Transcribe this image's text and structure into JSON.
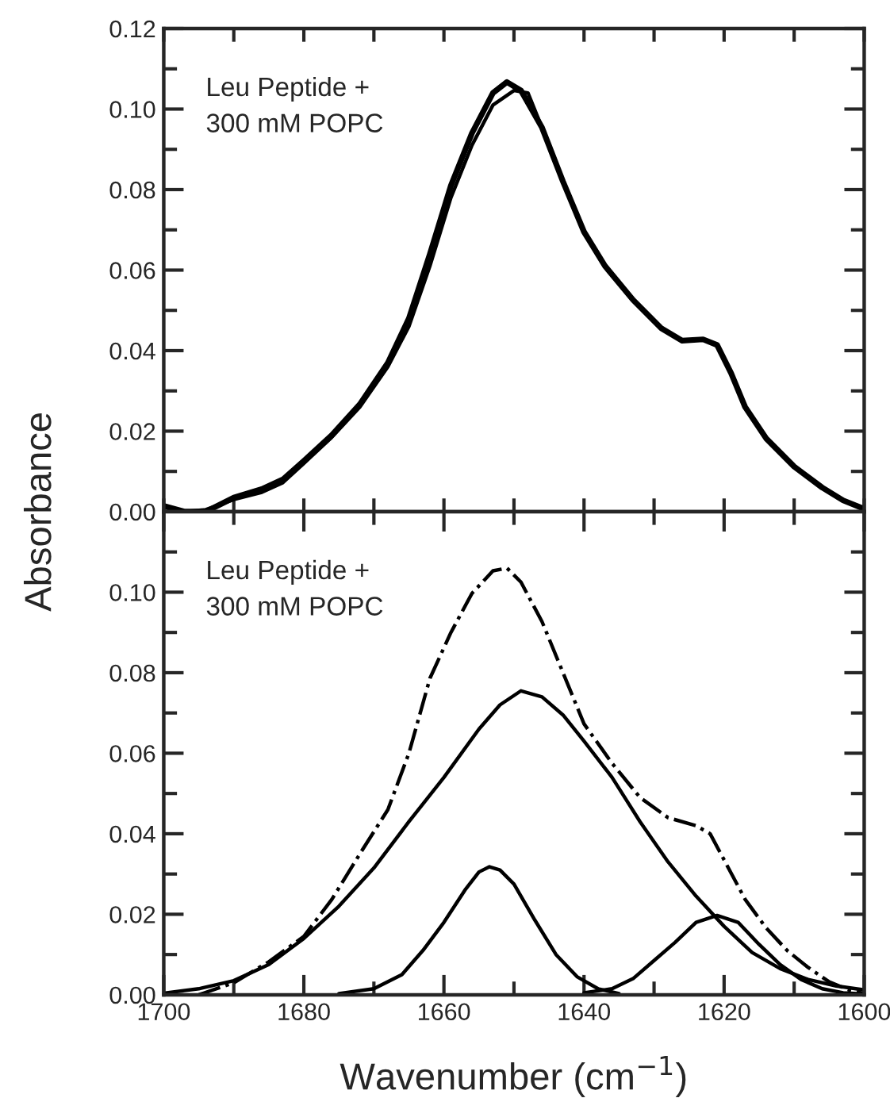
{
  "chart_data": [
    {
      "type": "line",
      "ylabel": "Absorbance",
      "annotations": [
        "Leu Peptide +\n300 mM POPC"
      ],
      "xlim": [
        1700,
        1600
      ],
      "ylim": [
        0,
        0.12
      ],
      "xticks": [
        {
          "value": 1700,
          "label": null
        },
        {
          "value": 1690,
          "label": null
        },
        {
          "value": 1680,
          "label": null
        },
        {
          "value": 1670,
          "label": null
        },
        {
          "value": 1660,
          "label": null
        },
        {
          "value": 1650,
          "label": null
        },
        {
          "value": 1640,
          "label": null
        },
        {
          "value": 1630,
          "label": null
        },
        {
          "value": 1620,
          "label": null
        },
        {
          "value": 1610,
          "label": null
        },
        {
          "value": 1600,
          "label": null
        }
      ],
      "yticks": [
        {
          "value": 0,
          "label": "0.00"
        },
        {
          "value": 0.01,
          "label": null
        },
        {
          "value": 0.02,
          "label": "0.02"
        },
        {
          "value": 0.03,
          "label": null
        },
        {
          "value": 0.04,
          "label": "0.04"
        },
        {
          "value": 0.05,
          "label": null
        },
        {
          "value": 0.06,
          "label": "0.06"
        },
        {
          "value": 0.07,
          "label": null
        },
        {
          "value": 0.08,
          "label": "0.08"
        },
        {
          "value": 0.09,
          "label": null
        },
        {
          "value": 0.1,
          "label": "0.10"
        },
        {
          "value": 0.11,
          "label": null
        },
        {
          "value": 0.12,
          "label": "0.12"
        }
      ],
      "tick_labels": "y",
      "grid": false,
      "legend": false,
      "marker": "none",
      "series": [
        {
          "color": "#000000",
          "line_style": "solid",
          "x": [
            1700,
            1697,
            1694,
            1690,
            1686,
            1683,
            1680,
            1676,
            1672,
            1668,
            1665,
            1662,
            1659,
            1656,
            1653,
            1651,
            1649,
            1646,
            1643,
            1640,
            1637,
            1633,
            1629,
            1626,
            1623,
            1621,
            1619,
            1617,
            1614,
            1610,
            1606,
            1603,
            1600
          ],
          "values": [
            0.0014,
            0.0,
            0.0,
            0.0035,
            0.0056,
            0.008,
            0.0126,
            0.019,
            0.0267,
            0.037,
            0.048,
            0.064,
            0.081,
            0.094,
            0.104,
            0.1067,
            0.1046,
            0.0954,
            0.082,
            0.0695,
            0.061,
            0.0526,
            0.0456,
            0.0425,
            0.0428,
            0.0414,
            0.0344,
            0.026,
            0.0182,
            0.0112,
            0.006,
            0.0028,
            0.0007
          ]
        },
        {
          "color": "#000000",
          "line_style": "solid",
          "x": [
            1700,
            1697,
            1694,
            1690,
            1686,
            1683,
            1680,
            1676,
            1672,
            1668,
            1665,
            1662,
            1659,
            1656,
            1653,
            1650,
            1648,
            1646,
            1643,
            1640,
            1637,
            1633,
            1629,
            1626,
            1623,
            1621,
            1619,
            1617,
            1614,
            1610,
            1606,
            1603,
            1600
          ],
          "values": [
            0.0,
            0.0,
            0.0005,
            0.003,
            0.0048,
            0.0072,
            0.012,
            0.0185,
            0.026,
            0.036,
            0.046,
            0.061,
            0.078,
            0.091,
            0.101,
            0.1046,
            0.104,
            0.0954,
            0.082,
            0.0695,
            0.061,
            0.0526,
            0.0456,
            0.0425,
            0.0428,
            0.0414,
            0.0344,
            0.026,
            0.0182,
            0.0112,
            0.006,
            0.0028,
            0.0007
          ]
        }
      ]
    },
    {
      "type": "line",
      "xlabel": "Wavenumber (cm$^{−1}$)",
      "annotations": [
        "Leu Peptide +\n300 mM POPC"
      ],
      "xlim": [
        1700,
        1600
      ],
      "ylim": [
        0,
        0.12
      ],
      "xticks": [
        1700,
        {
          "value": 1690,
          "label": null
        },
        1680,
        {
          "value": 1670,
          "label": null
        },
        1660,
        {
          "value": 1650,
          "label": null
        },
        1640,
        {
          "value": 1630,
          "label": null
        },
        1620,
        {
          "value": 1610,
          "label": null
        },
        1600
      ],
      "yticks": [
        {
          "value": 0,
          "label": "0.00"
        },
        {
          "value": 0.01,
          "label": null
        },
        {
          "value": 0.02,
          "label": "0.02"
        },
        {
          "value": 0.03,
          "label": null
        },
        {
          "value": 0.04,
          "label": "0.04"
        },
        {
          "value": 0.05,
          "label": null
        },
        {
          "value": 0.06,
          "label": "0.06"
        },
        {
          "value": 0.07,
          "label": null
        },
        {
          "value": 0.08,
          "label": "0.08"
        },
        {
          "value": 0.09,
          "label": null
        },
        {
          "value": 0.1,
          "label": "0.10"
        },
        {
          "value": 0.11,
          "label": null
        }
      ],
      "grid": false,
      "legend": false,
      "marker": "none",
      "series": [
        {
          "color": "#000000",
          "line_style": "dashdot",
          "x": [
            1695,
            1690,
            1685,
            1680,
            1676,
            1672,
            1668,
            1665,
            1662,
            1659,
            1656,
            1653,
            1651,
            1649,
            1646,
            1643,
            1640,
            1636,
            1632,
            1628,
            1624,
            1622,
            1620,
            1617,
            1614,
            1611,
            1608,
            1605,
            1602,
            1600
          ],
          "values": [
            0.0,
            0.003,
            0.0082,
            0.0145,
            0.0237,
            0.035,
            0.046,
            0.06,
            0.0786,
            0.09,
            0.0997,
            0.1053,
            0.106,
            0.1025,
            0.0927,
            0.08,
            0.0673,
            0.0575,
            0.049,
            0.044,
            0.042,
            0.04,
            0.0335,
            0.0237,
            0.0166,
            0.011,
            0.0068,
            0.0032,
            0.0011,
            0.0003
          ]
        },
        {
          "color": "#000000",
          "line_style": "solid",
          "x": [
            1700,
            1695,
            1690,
            1685,
            1680,
            1675,
            1670,
            1665,
            1660,
            1655,
            1652,
            1649,
            1646,
            1643,
            1640,
            1636,
            1632,
            1628,
            1624,
            1620,
            1616,
            1612,
            1608,
            1604,
            1600
          ],
          "values": [
            0.0004,
            0.0015,
            0.0035,
            0.0075,
            0.014,
            0.022,
            0.0315,
            0.043,
            0.054,
            0.066,
            0.072,
            0.0755,
            0.074,
            0.0695,
            0.063,
            0.054,
            0.043,
            0.033,
            0.0245,
            0.017,
            0.0105,
            0.0065,
            0.0038,
            0.0022,
            0.0012
          ]
        },
        {
          "color": "#000000",
          "line_style": "solid",
          "x": [
            1675,
            1670,
            1666,
            1663,
            1660,
            1657,
            1655,
            1653.5,
            1652,
            1650,
            1647,
            1644,
            1641,
            1638,
            1635
          ],
          "values": [
            0.0003,
            0.0015,
            0.005,
            0.011,
            0.018,
            0.026,
            0.0305,
            0.0318,
            0.031,
            0.0275,
            0.0185,
            0.01,
            0.0045,
            0.0015,
            0.0003
          ]
        },
        {
          "color": "#000000",
          "line_style": "solid",
          "x": [
            1640,
            1636,
            1633,
            1630,
            1627,
            1624,
            1621,
            1618,
            1615,
            1612,
            1609,
            1606,
            1603,
            1600
          ],
          "values": [
            0.0005,
            0.0015,
            0.004,
            0.0085,
            0.013,
            0.018,
            0.0197,
            0.018,
            0.0125,
            0.0075,
            0.0038,
            0.0015,
            0.0005,
            0.0002
          ]
        }
      ]
    }
  ]
}
